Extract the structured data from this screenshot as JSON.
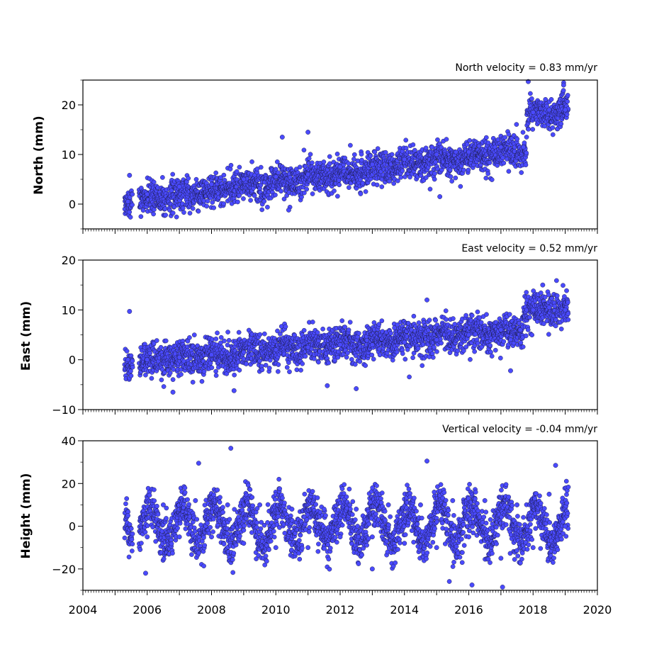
{
  "chart_data": [
    {
      "type": "scatter",
      "title": "North velocity = 0.83 mm/yr",
      "ylabel": "North (mm)",
      "xlim": [
        2004,
        2020
      ],
      "ylim": [
        -5,
        25
      ],
      "yticks": [
        0,
        10,
        20
      ],
      "marker_color": "#4a4aff",
      "model": {
        "start": 2005.3,
        "end": 2019.1,
        "segments": [
          {
            "from": 2005.3,
            "to": 2017.8,
            "y0": 0.5,
            "y1": 11.0
          },
          {
            "from": 2017.8,
            "to": 2019.1,
            "y0": 18.0,
            "y1": 19.0
          }
        ],
        "seasonal_amplitude": 0.5,
        "scatter_sd": 1.6,
        "gap": [
          2005.55,
          2005.75
        ]
      },
      "series": [
        {
          "values": [
            {
              "x": 2005.4,
              "y": 0.5
            },
            {
              "x": 2006,
              "y": 2
            },
            {
              "x": 2007,
              "y": 3.5
            },
            {
              "x": 2008,
              "y": 4
            },
            {
              "x": 2009,
              "y": 5
            },
            {
              "x": 2010,
              "y": 5.5
            },
            {
              "x": 2011,
              "y": 6
            },
            {
              "x": 2012,
              "y": 7.5
            },
            {
              "x": 2013,
              "y": 8
            },
            {
              "x": 2014,
              "y": 9
            },
            {
              "x": 2015,
              "y": 10
            },
            {
              "x": 2016,
              "y": 10.5
            },
            {
              "x": 2017,
              "y": 11.5
            },
            {
              "x": 2017.7,
              "y": 11.5
            },
            {
              "x": 2018,
              "y": 18.5
            },
            {
              "x": 2018.5,
              "y": 19
            },
            {
              "x": 2019,
              "y": 19
            },
            {
              "x": 2017.85,
              "y": 25
            },
            {
              "x": 2018.95,
              "y": 24
            },
            {
              "x": 2015.1,
              "y": 1.5
            },
            {
              "x": 2010.4,
              "y": -1.2
            },
            {
              "x": 2006.8,
              "y": -1.8
            },
            {
              "x": 2011,
              "y": 14.5
            },
            {
              "x": 2005.45,
              "y": 5.8
            },
            {
              "x": 2010.2,
              "y": 13.5
            }
          ]
        }
      ]
    },
    {
      "type": "scatter",
      "title": "East velocity = 0.52 mm/yr",
      "ylabel": "East (mm)",
      "xlim": [
        2004,
        2020
      ],
      "ylim": [
        -10,
        20
      ],
      "yticks": [
        -10,
        0,
        10,
        20
      ],
      "marker_color": "#4a4aff",
      "model": {
        "start": 2005.3,
        "end": 2019.1,
        "segments": [
          {
            "from": 2005.3,
            "to": 2017.7,
            "y0": -0.5,
            "y1": 6.0
          },
          {
            "from": 2017.7,
            "to": 2019.1,
            "y0": 9.5,
            "y1": 10.5
          }
        ],
        "seasonal_amplitude": 0.6,
        "scatter_sd": 1.7,
        "gap": [
          2005.55,
          2005.75
        ]
      },
      "series": [
        {
          "values": [
            {
              "x": 2005.4,
              "y": 0
            },
            {
              "x": 2006,
              "y": 0
            },
            {
              "x": 2007,
              "y": 0.5
            },
            {
              "x": 2008,
              "y": 1
            },
            {
              "x": 2009,
              "y": 1.5
            },
            {
              "x": 2010,
              "y": 2
            },
            {
              "x": 2011,
              "y": 2.5
            },
            {
              "x": 2012,
              "y": 3
            },
            {
              "x": 2013,
              "y": 3
            },
            {
              "x": 2014,
              "y": 3.5
            },
            {
              "x": 2015,
              "y": 4
            },
            {
              "x": 2016,
              "y": 5
            },
            {
              "x": 2017,
              "y": 6
            },
            {
              "x": 2017.6,
              "y": 6
            },
            {
              "x": 2018,
              "y": 10
            },
            {
              "x": 2018.5,
              "y": 10.5
            },
            {
              "x": 2019,
              "y": 10
            },
            {
              "x": 2005.45,
              "y": 9.7
            },
            {
              "x": 2014.7,
              "y": 12
            },
            {
              "x": 2018.3,
              "y": 15
            },
            {
              "x": 2008.7,
              "y": -6.2
            },
            {
              "x": 2006.8,
              "y": -6.5
            },
            {
              "x": 2012.5,
              "y": -5.8
            },
            {
              "x": 2017.3,
              "y": -2.2
            },
            {
              "x": 2011.6,
              "y": -5.2
            }
          ]
        }
      ]
    },
    {
      "type": "scatter",
      "title": "Vertical velocity = -0.04 mm/yr",
      "ylabel": "Height (mm)",
      "xlabel": "",
      "xlim": [
        2004,
        2020
      ],
      "ylim": [
        -30,
        40
      ],
      "yticks": [
        -20,
        0,
        20,
        40
      ],
      "xticks": [
        2004,
        2006,
        2008,
        2010,
        2012,
        2014,
        2016,
        2018,
        2020
      ],
      "marker_color": "#4a4aff",
      "model": {
        "start": 2005.3,
        "end": 2019.1,
        "segments": [
          {
            "from": 2005.3,
            "to": 2019.1,
            "y0": 1.0,
            "y1": 0.5
          }
        ],
        "seasonal_amplitude": 9,
        "scatter_sd": 5,
        "gap": [
          2005.55,
          2005.75
        ]
      },
      "series": [
        {
          "values": [
            {
              "x": 2005.4,
              "y": 5
            },
            {
              "x": 2006,
              "y": -5
            },
            {
              "x": 2006.5,
              "y": 10
            },
            {
              "x": 2007,
              "y": -5
            },
            {
              "x": 2007.5,
              "y": 12
            },
            {
              "x": 2008,
              "y": -5
            },
            {
              "x": 2008.5,
              "y": 10
            },
            {
              "x": 2009,
              "y": -8
            },
            {
              "x": 2009.5,
              "y": 10
            },
            {
              "x": 2010,
              "y": -10
            },
            {
              "x": 2010.5,
              "y": 8
            },
            {
              "x": 2011,
              "y": -10
            },
            {
              "x": 2011.5,
              "y": 8
            },
            {
              "x": 2012,
              "y": -5
            },
            {
              "x": 2012.5,
              "y": 8
            },
            {
              "x": 2013,
              "y": -5
            },
            {
              "x": 2013.5,
              "y": 10
            },
            {
              "x": 2014,
              "y": -8
            },
            {
              "x": 2014.5,
              "y": 10
            },
            {
              "x": 2015,
              "y": -10
            },
            {
              "x": 2015.5,
              "y": 12
            },
            {
              "x": 2016,
              "y": -5
            },
            {
              "x": 2016.5,
              "y": 12
            },
            {
              "x": 2017,
              "y": -15
            },
            {
              "x": 2017.5,
              "y": 10
            },
            {
              "x": 2018,
              "y": -10
            },
            {
              "x": 2018.5,
              "y": 15
            },
            {
              "x": 2019,
              "y": 0
            },
            {
              "x": 2008.6,
              "y": 36.5
            },
            {
              "x": 2014.7,
              "y": 30.5
            },
            {
              "x": 2007.6,
              "y": 29.5
            },
            {
              "x": 2016.1,
              "y": -27.5
            },
            {
              "x": 2017.05,
              "y": -28.5
            },
            {
              "x": 2005.95,
              "y": -22
            },
            {
              "x": 2018.7,
              "y": 28.5
            },
            {
              "x": 2013,
              "y": -20
            }
          ]
        }
      ]
    }
  ]
}
